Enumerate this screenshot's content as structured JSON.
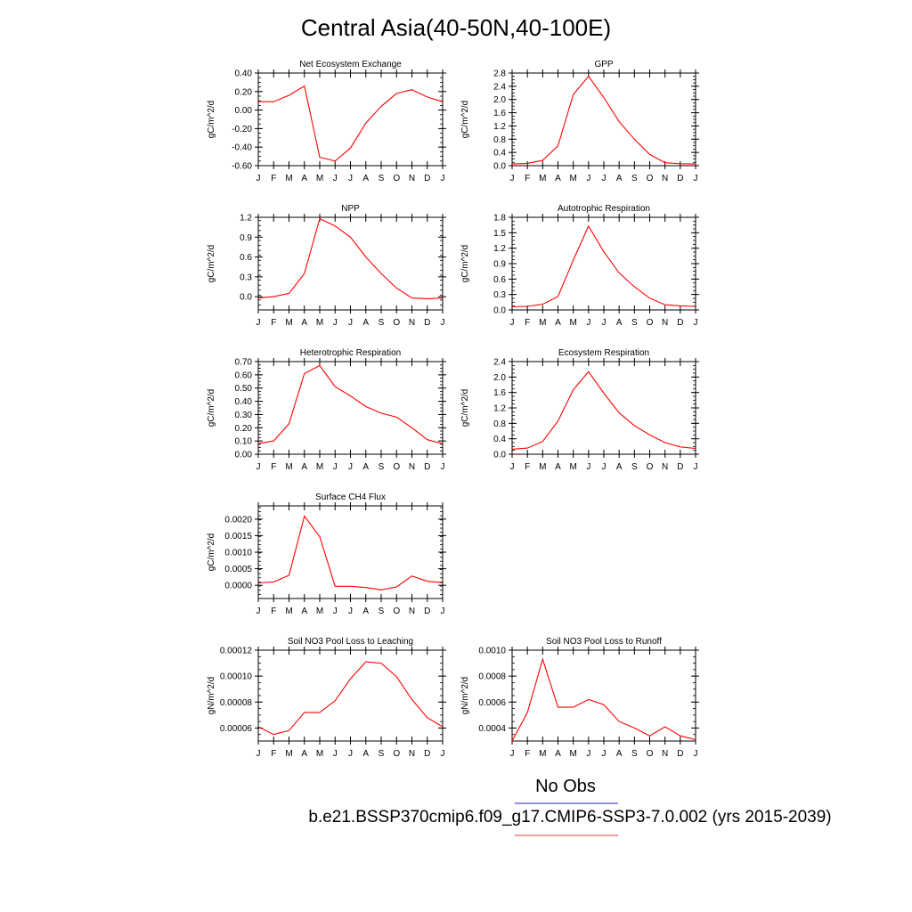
{
  "page": {
    "title": "Central Asia(40-50N,40-100E)"
  },
  "legend": {
    "entries": [
      {
        "label": "No Obs",
        "color": "#6b6bdf"
      },
      {
        "label": "b.e21.BSSP370cmip6.f09_g17.CMIP6-SSP3-7.0.002 (yrs 2015-2039)",
        "color": "#ef7b7b"
      }
    ]
  },
  "colors": {
    "series": "#ff0000",
    "axis": "#000000"
  },
  "chart_data": [
    {
      "type": "line",
      "title": "Net Ecosystem Exchange",
      "ylabel": "gC/m^2/d",
      "x": [
        "J",
        "F",
        "M",
        "A",
        "M",
        "J",
        "J",
        "A",
        "S",
        "O",
        "N",
        "D",
        "J"
      ],
      "ylim": [
        -0.6,
        0.4
      ],
      "yticks": [
        "0.40",
        "0.20",
        "0.00",
        "-0.20",
        "-0.40",
        "-0.60"
      ],
      "ytick_values": [
        0.4,
        0.2,
        0.0,
        -0.2,
        -0.4,
        -0.6
      ],
      "series": [
        {
          "values": [
            0.09,
            0.09,
            0.16,
            0.26,
            -0.51,
            -0.55,
            -0.41,
            -0.14,
            0.04,
            0.18,
            0.22,
            0.14,
            0.09
          ]
        }
      ]
    },
    {
      "type": "line",
      "title": "GPP",
      "ylabel": "gC/m^2/d",
      "x": [
        "J",
        "F",
        "M",
        "A",
        "M",
        "J",
        "J",
        "A",
        "S",
        "O",
        "N",
        "D",
        "J"
      ],
      "ylim": [
        0.0,
        2.8
      ],
      "yticks": [
        "2.8",
        "2.4",
        "2.0",
        "1.6",
        "1.2",
        "0.8",
        "0.4",
        "0.0"
      ],
      "ytick_values": [
        2.8,
        2.4,
        2.0,
        1.6,
        1.2,
        0.8,
        0.4,
        0.0
      ],
      "series": [
        {
          "values": [
            0.05,
            0.07,
            0.16,
            0.6,
            2.15,
            2.7,
            2.06,
            1.33,
            0.8,
            0.34,
            0.09,
            0.06,
            0.05
          ]
        }
      ]
    },
    {
      "type": "line",
      "title": "NPP",
      "ylabel": "gC/m^2/d",
      "x": [
        "J",
        "F",
        "M",
        "A",
        "M",
        "J",
        "J",
        "A",
        "S",
        "O",
        "N",
        "D",
        "J"
      ],
      "ylim": [
        -0.2,
        1.2
      ],
      "yticks": [
        "1.2",
        "0.9",
        "0.6",
        "0.3",
        "0.0"
      ],
      "ytick_values": [
        1.2,
        0.9,
        0.6,
        0.3,
        0.0
      ],
      "series": [
        {
          "values": [
            -0.02,
            0.0,
            0.05,
            0.35,
            1.18,
            1.07,
            0.9,
            0.6,
            0.35,
            0.13,
            -0.02,
            -0.03,
            -0.02
          ]
        }
      ]
    },
    {
      "type": "line",
      "title": "Autotrophic Respiration",
      "ylabel": "gC/m^2/d",
      "x": [
        "J",
        "F",
        "M",
        "A",
        "M",
        "J",
        "J",
        "A",
        "S",
        "O",
        "N",
        "D",
        "J"
      ],
      "ylim": [
        0.0,
        1.8
      ],
      "yticks": [
        "1.8",
        "1.5",
        "1.2",
        "0.9",
        "0.6",
        "0.3",
        "0.0"
      ],
      "ytick_values": [
        1.8,
        1.5,
        1.2,
        0.9,
        0.6,
        0.3,
        0.0
      ],
      "series": [
        {
          "values": [
            0.06,
            0.07,
            0.11,
            0.26,
            0.97,
            1.63,
            1.13,
            0.72,
            0.45,
            0.23,
            0.1,
            0.08,
            0.07
          ]
        }
      ]
    },
    {
      "type": "line",
      "title": "Heterotrophic Respiration",
      "ylabel": "gC/m^2/d",
      "x": [
        "J",
        "F",
        "M",
        "A",
        "M",
        "J",
        "J",
        "A",
        "S",
        "O",
        "N",
        "D",
        "J"
      ],
      "ylim": [
        0.0,
        0.7
      ],
      "yticks": [
        "0.70",
        "0.60",
        "0.50",
        "0.40",
        "0.30",
        "0.20",
        "0.10",
        "0.00"
      ],
      "ytick_values": [
        0.7,
        0.6,
        0.5,
        0.4,
        0.3,
        0.2,
        0.1,
        0.0
      ],
      "series": [
        {
          "values": [
            0.08,
            0.1,
            0.23,
            0.61,
            0.67,
            0.51,
            0.44,
            0.36,
            0.31,
            0.28,
            0.2,
            0.11,
            0.08
          ]
        }
      ]
    },
    {
      "type": "line",
      "title": "Ecosystem Respiration",
      "ylabel": "gC/m^2/d",
      "x": [
        "J",
        "F",
        "M",
        "A",
        "M",
        "J",
        "J",
        "A",
        "S",
        "O",
        "N",
        "D",
        "J"
      ],
      "ylim": [
        0.0,
        2.4
      ],
      "yticks": [
        "2.4",
        "2.0",
        "1.6",
        "1.2",
        "0.8",
        "0.4",
        "0.0"
      ],
      "ytick_values": [
        2.4,
        2.0,
        1.6,
        1.2,
        0.8,
        0.4,
        0.0
      ],
      "series": [
        {
          "values": [
            0.13,
            0.16,
            0.33,
            0.86,
            1.67,
            2.14,
            1.58,
            1.07,
            0.74,
            0.5,
            0.3,
            0.19,
            0.15
          ]
        }
      ]
    },
    {
      "type": "line",
      "title": "Surface CH4 Flux",
      "ylabel": "gC/m^2/d",
      "x": [
        "J",
        "F",
        "M",
        "A",
        "M",
        "J",
        "J",
        "A",
        "S",
        "O",
        "N",
        "D",
        "J"
      ],
      "ylim": [
        -0.0004,
        0.0024
      ],
      "yticks": [
        "0.0020",
        "0.0015",
        "0.0010",
        "0.0005",
        "0.0000"
      ],
      "ytick_values": [
        0.002,
        0.0015,
        0.001,
        0.0005,
        0.0
      ],
      "series": [
        {
          "values": [
            7e-05,
            0.0001,
            0.0003,
            0.00209,
            0.00147,
            -3e-05,
            -3e-05,
            -7e-05,
            -0.00014,
            -5e-05,
            0.00028,
            0.00012,
            8e-05
          ]
        }
      ]
    },
    {
      "type": "line",
      "title": "Soil NO3 Pool Loss to Leaching",
      "ylabel": "gN/m^2/d",
      "x": [
        "J",
        "F",
        "M",
        "A",
        "M",
        "J",
        "J",
        "A",
        "S",
        "O",
        "N",
        "D",
        "J"
      ],
      "ylim": [
        5e-05,
        0.00012
      ],
      "yticks": [
        "0.00012",
        "0.00010",
        "0.00008",
        "0.00006"
      ],
      "ytick_values": [
        0.00012,
        0.0001,
        8e-05,
        6e-05
      ],
      "series": [
        {
          "values": [
            6.1e-05,
            5.5e-05,
            5.8e-05,
            7.2e-05,
            7.2e-05,
            8.1e-05,
            9.8e-05,
            0.000111,
            0.00011,
            9.95e-05,
            8.2e-05,
            6.8e-05,
            6.1e-05
          ]
        }
      ]
    },
    {
      "type": "line",
      "title": "Soil NO3 Pool Loss to Runoff",
      "ylabel": "gN/m^2/d",
      "x": [
        "J",
        "F",
        "M",
        "A",
        "M",
        "J",
        "J",
        "A",
        "S",
        "O",
        "N",
        "D",
        "J"
      ],
      "ylim": [
        0.0003,
        0.001
      ],
      "yticks": [
        "0.0010",
        "0.0008",
        "0.0006",
        "0.0004"
      ],
      "ytick_values": [
        0.001,
        0.0008,
        0.0006,
        0.0004
      ],
      "series": [
        {
          "values": [
            0.0003,
            0.00052,
            0.00093,
            0.00056,
            0.00056,
            0.00062,
            0.00058,
            0.00045,
            0.0004,
            0.00034,
            0.00041,
            0.00034,
            0.00031
          ]
        }
      ]
    }
  ]
}
